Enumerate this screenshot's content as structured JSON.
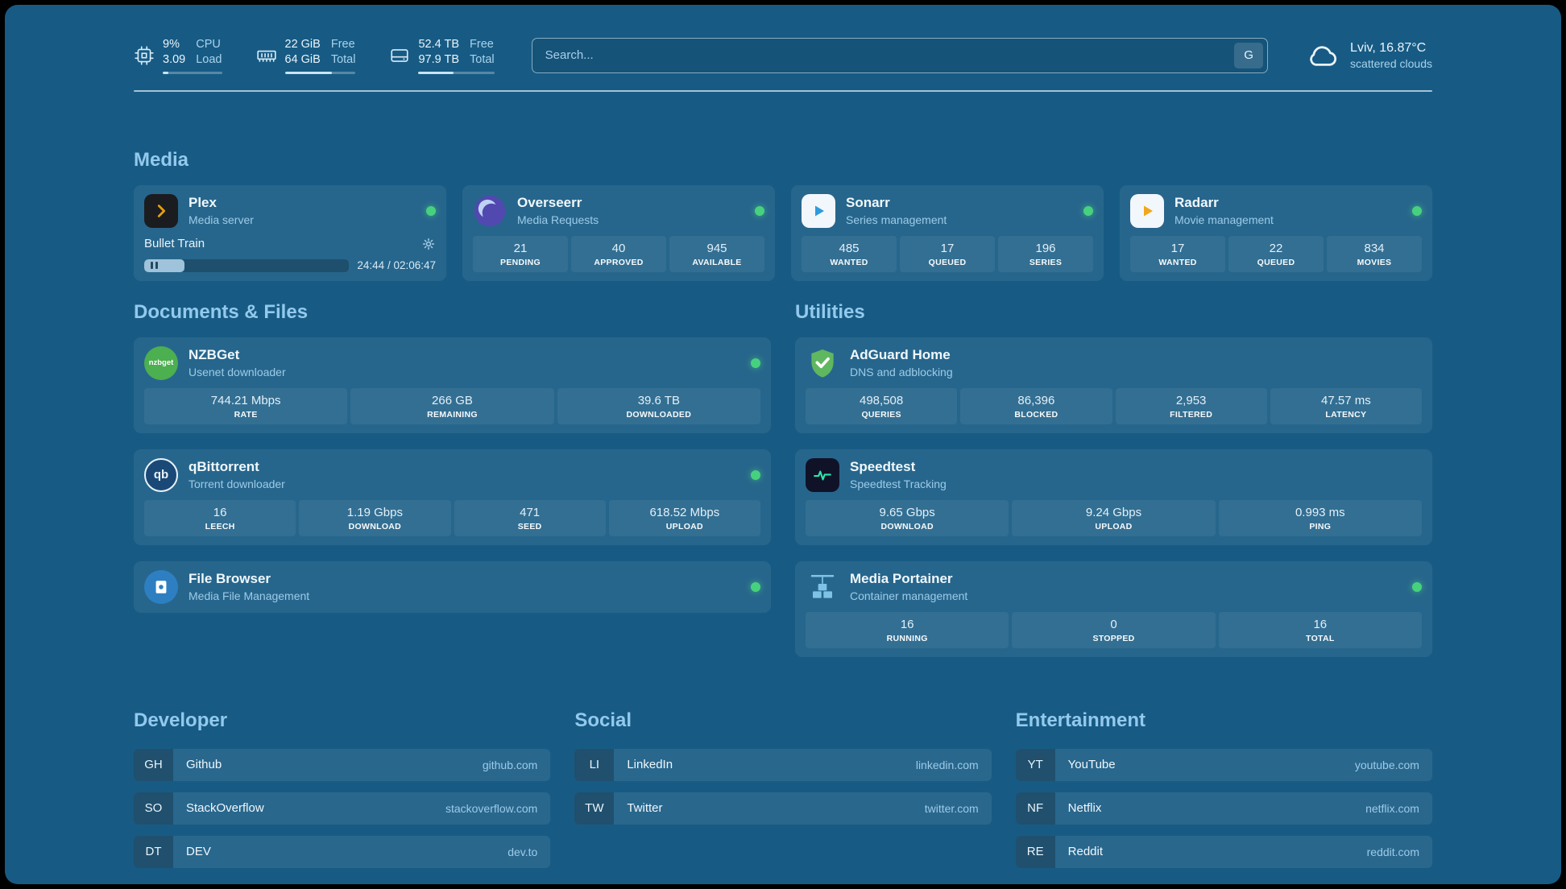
{
  "colors": {
    "background": "#175B84",
    "section_title": "#93C9ED",
    "subtitle": "#9CCBE8",
    "status_online": "#47D17E",
    "plex_amber": "#E5A00D"
  },
  "header": {
    "resources": [
      {
        "icon": "cpu-icon",
        "values": [
          "9%",
          "3.09"
        ],
        "labels": [
          "CPU",
          "Load"
        ],
        "progress_pct": 9
      },
      {
        "icon": "memory-icon",
        "values": [
          "22 GiB",
          "64 GiB"
        ],
        "labels": [
          "Free",
          "Total"
        ],
        "progress_pct": 66
      },
      {
        "icon": "disk-icon",
        "values": [
          "52.4 TB",
          "97.9 TB"
        ],
        "labels": [
          "Free",
          "Total"
        ],
        "progress_pct": 46
      }
    ],
    "search": {
      "placeholder": "Search...",
      "provider_button": "G"
    },
    "weather": {
      "icon": "cloud-icon",
      "location": "Lviv, 16.87°C",
      "condition": "scattered clouds"
    }
  },
  "media": {
    "title": "Media",
    "cards": [
      {
        "name": "Plex",
        "subtitle": "Media server",
        "icon": "plex-icon",
        "status": "online",
        "player": {
          "track": "Bullet Train",
          "time_display": "24:44 / 02:06:47",
          "progress_pct": 19.5
        }
      },
      {
        "name": "Overseerr",
        "subtitle": "Media Requests",
        "icon": "overseerr-icon",
        "status": "online",
        "stats": [
          {
            "value": "21",
            "label": "PENDING"
          },
          {
            "value": "40",
            "label": "APPROVED"
          },
          {
            "value": "945",
            "label": "AVAILABLE"
          }
        ]
      },
      {
        "name": "Sonarr",
        "subtitle": "Series management",
        "icon": "sonarr-icon",
        "status": "online",
        "stats": [
          {
            "value": "485",
            "label": "WANTED"
          },
          {
            "value": "17",
            "label": "QUEUED"
          },
          {
            "value": "196",
            "label": "SERIES"
          }
        ]
      },
      {
        "name": "Radarr",
        "subtitle": "Movie management",
        "icon": "radarr-icon",
        "status": "online",
        "stats": [
          {
            "value": "17",
            "label": "WANTED"
          },
          {
            "value": "22",
            "label": "QUEUED"
          },
          {
            "value": "834",
            "label": "MOVIES"
          }
        ]
      }
    ]
  },
  "documents": {
    "title": "Documents & Files",
    "cards": [
      {
        "name": "NZBGet",
        "subtitle": "Usenet downloader",
        "icon": "nzbget-icon",
        "status": "online",
        "stats": [
          {
            "value": "744.21 Mbps",
            "label": "RATE"
          },
          {
            "value": "266 GB",
            "label": "REMAINING"
          },
          {
            "value": "39.6 TB",
            "label": "DOWNLOADED"
          }
        ]
      },
      {
        "name": "qBittorrent",
        "subtitle": "Torrent downloader",
        "icon": "qbittorrent-icon",
        "status": "online",
        "stats": [
          {
            "value": "16",
            "label": "LEECH"
          },
          {
            "value": "1.19 Gbps",
            "label": "DOWNLOAD"
          },
          {
            "value": "471",
            "label": "SEED"
          },
          {
            "value": "618.52 Mbps",
            "label": "UPLOAD"
          }
        ]
      },
      {
        "name": "File Browser",
        "subtitle": "Media File Management",
        "icon": "filebrowser-icon",
        "status": "online",
        "stats": []
      }
    ]
  },
  "utilities": {
    "title": "Utilities",
    "cards": [
      {
        "name": "AdGuard Home",
        "subtitle": "DNS and adblocking",
        "icon": "adguard-icon",
        "stats": [
          {
            "value": "498,508",
            "label": "QUERIES"
          },
          {
            "value": "86,396",
            "label": "BLOCKED"
          },
          {
            "value": "2,953",
            "label": "FILTERED"
          },
          {
            "value": "47.57 ms",
            "label": "LATENCY"
          }
        ]
      },
      {
        "name": "Speedtest",
        "subtitle": "Speedtest Tracking",
        "icon": "speedtest-icon",
        "stats": [
          {
            "value": "9.65 Gbps",
            "label": "DOWNLOAD"
          },
          {
            "value": "9.24 Gbps",
            "label": "UPLOAD"
          },
          {
            "value": "0.993 ms",
            "label": "PING"
          }
        ]
      },
      {
        "name": "Media Portainer",
        "subtitle": "Container management",
        "icon": "portainer-icon",
        "status": "online",
        "stats": [
          {
            "value": "16",
            "label": "RUNNING"
          },
          {
            "value": "0",
            "label": "STOPPED"
          },
          {
            "value": "16",
            "label": "TOTAL"
          }
        ]
      }
    ]
  },
  "bookmarks": {
    "groups": [
      {
        "title": "Developer",
        "items": [
          {
            "abbr": "GH",
            "name": "Github",
            "domain": "github.com"
          },
          {
            "abbr": "SO",
            "name": "StackOverflow",
            "domain": "stackoverflow.com"
          },
          {
            "abbr": "DT",
            "name": "DEV",
            "domain": "dev.to"
          }
        ]
      },
      {
        "title": "Social",
        "items": [
          {
            "abbr": "LI",
            "name": "LinkedIn",
            "domain": "linkedin.com"
          },
          {
            "abbr": "TW",
            "name": "Twitter",
            "domain": "twitter.com"
          }
        ]
      },
      {
        "title": "Entertainment",
        "items": [
          {
            "abbr": "YT",
            "name": "YouTube",
            "domain": "youtube.com"
          },
          {
            "abbr": "NF",
            "name": "Netflix",
            "domain": "netflix.com"
          },
          {
            "abbr": "RE",
            "name": "Reddit",
            "domain": "reddit.com"
          }
        ]
      }
    ]
  }
}
